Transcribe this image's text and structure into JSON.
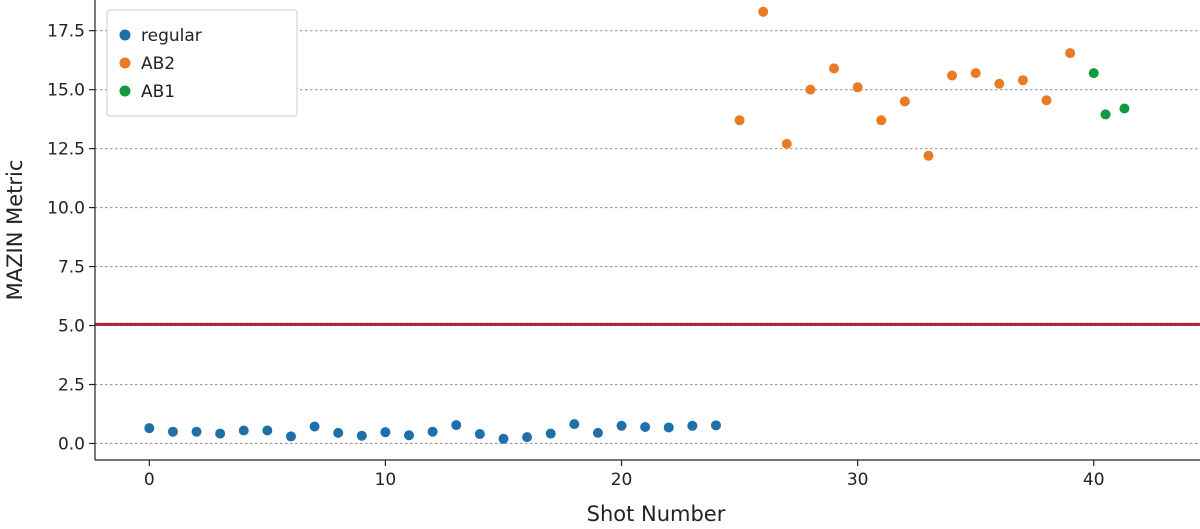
{
  "chart_data": {
    "type": "scatter",
    "title": "",
    "xlabel": "Shot Number",
    "ylabel": "MAZIN Metric",
    "xlim": [
      -2.3,
      44.5
    ],
    "ylim": [
      -0.7,
      18.8
    ],
    "xticks": [
      0,
      10,
      20,
      30,
      40
    ],
    "yticks": [
      0.0,
      2.5,
      5.0,
      7.5,
      10.0,
      12.5,
      15.0,
      17.5
    ],
    "xtick_labels": [
      "0",
      "10",
      "20",
      "30",
      "40"
    ],
    "ytick_labels": [
      "0.0",
      "2.5",
      "5.0",
      "7.5",
      "10.0",
      "12.5",
      "15.0",
      "17.5"
    ],
    "grid": "y-dotted",
    "legend_position": "top-left",
    "threshold": {
      "y": 5.05,
      "color": "#b22234"
    },
    "series": [
      {
        "name": "regular",
        "color": "#1f6fa8",
        "x": [
          0,
          1,
          2,
          3,
          4,
          5,
          6,
          7,
          8,
          9,
          10,
          11,
          12,
          13,
          14,
          15,
          16,
          17,
          18,
          19,
          20,
          21,
          22,
          23,
          24
        ],
        "y": [
          0.65,
          0.5,
          0.5,
          0.42,
          0.55,
          0.55,
          0.3,
          0.72,
          0.45,
          0.33,
          0.48,
          0.35,
          0.5,
          0.78,
          0.4,
          0.2,
          0.27,
          0.42,
          0.82,
          0.45,
          0.75,
          0.7,
          0.68,
          0.75,
          0.77
        ]
      },
      {
        "name": "AB2",
        "color": "#e87b24",
        "x": [
          25,
          26,
          27,
          28,
          29,
          30,
          31,
          32,
          33,
          34,
          35,
          36,
          37,
          38,
          39
        ],
        "y": [
          13.7,
          18.3,
          12.7,
          15.0,
          15.9,
          15.1,
          13.7,
          14.5,
          12.2,
          15.6,
          15.7,
          15.25,
          15.4,
          14.55,
          16.55
        ]
      },
      {
        "name": "AB1",
        "color": "#129a3e",
        "x": [
          40,
          40.5,
          41.3
        ],
        "y": [
          15.7,
          13.95,
          14.2
        ]
      }
    ]
  }
}
